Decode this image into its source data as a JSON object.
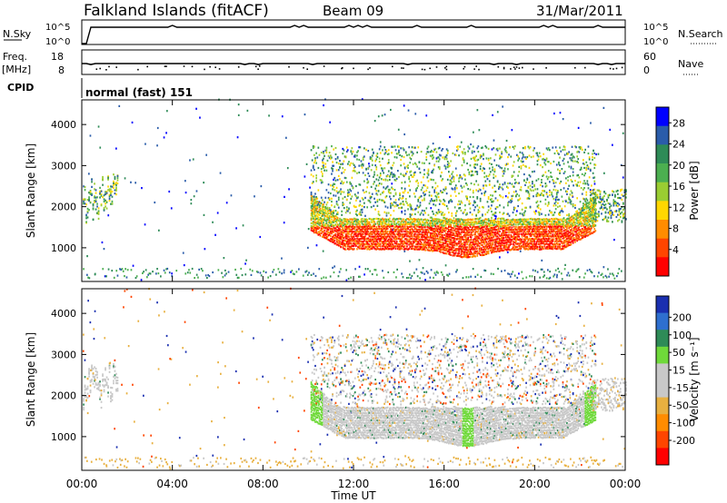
{
  "header": {
    "station": "Falkland Islands (fitACF)",
    "beam": "Beam 09",
    "date": "31/Mar/2011"
  },
  "strip_panels": {
    "nsky": {
      "label": "N.Sky",
      "ticks": [
        "10^5",
        "10^0"
      ],
      "right_label": "N.Search",
      "right_ticks": [
        "10^5",
        "10^0"
      ]
    },
    "freq": {
      "label": "Freq.",
      "unit": "[MHz]",
      "ticks": [
        "18",
        "8"
      ],
      "right_label": "Nave",
      "right_ticks": [
        "60",
        "0"
      ]
    },
    "cpid": {
      "label": "CPID",
      "value": "normal (fast) 151"
    }
  },
  "colors": {
    "power_scale": [
      "#0000ff",
      "#2a5caa",
      "#2e8b57",
      "#4caf50",
      "#9acd32",
      "#ffd700",
      "#ff8c00",
      "#ff4500",
      "#ff0000"
    ],
    "velocity_scale": [
      "#1a2fb0",
      "#2e6fcf",
      "#2e8b57",
      "#6fd93a",
      "#c8c8c8",
      "#c8c8c8",
      "#e8b040",
      "#ff8c00",
      "#ff4500",
      "#ff0000"
    ]
  },
  "chart_data": [
    {
      "type": "heatmap",
      "name": "power",
      "ylabel": "Slant Range [km]",
      "yticks": [
        "1000",
        "2000",
        "3000",
        "4000"
      ],
      "ylim": [
        180,
        4600
      ],
      "colorbar": {
        "label": "Power [dB]",
        "ticks": [
          "4",
          "8",
          "12",
          "16",
          "20",
          "24",
          "28"
        ]
      }
    },
    {
      "type": "heatmap",
      "name": "velocity",
      "ylabel": "Slant Range [km]",
      "yticks": [
        "1000",
        "2000",
        "3000",
        "4000"
      ],
      "ylim": [
        180,
        4600
      ],
      "colorbar": {
        "label": "Velocity [m s⁻¹]",
        "ticks": [
          "200",
          "100",
          "50",
          "15",
          "-15",
          "-50",
          "-100",
          "-200"
        ]
      }
    }
  ],
  "xaxis": {
    "label": "Time UT",
    "ticks": [
      "00:00",
      "04:00",
      "08:00",
      "12:00",
      "16:00",
      "20:00",
      "00:00"
    ]
  }
}
